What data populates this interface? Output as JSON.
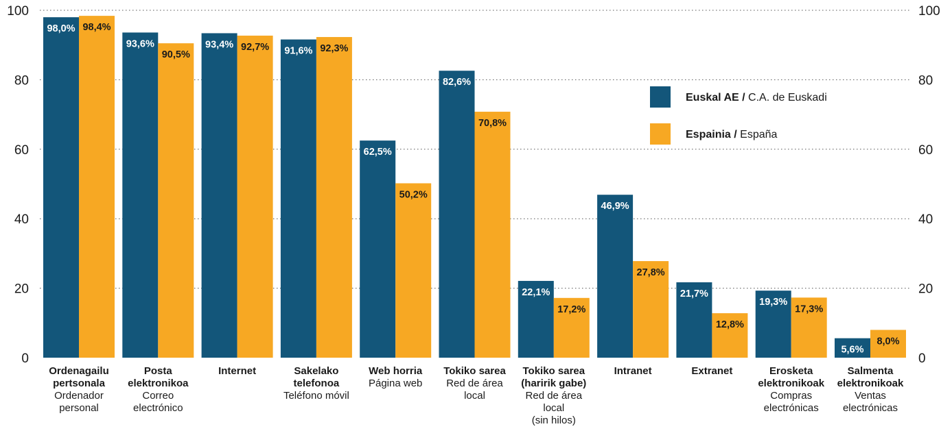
{
  "colors": {
    "series_0": "#13567a",
    "series_1": "#f7a823",
    "grid": "#555555",
    "value_label_dark": "#ffffff",
    "value_label_light": "#1a1a1a"
  },
  "chart_data": {
    "type": "bar",
    "ylim": [
      0,
      100
    ],
    "yticks": [
      0,
      20,
      40,
      60,
      80,
      100
    ],
    "grid": true,
    "grid_style": "dotted",
    "legend_position": "top-right",
    "categories": [
      {
        "bold": [
          "Ordenagailu",
          "pertsonala"
        ],
        "regular": [
          "Ordenador",
          "personal"
        ]
      },
      {
        "bold": [
          "Posta",
          "elektronikoa"
        ],
        "regular": [
          "Correo",
          "electrónico"
        ]
      },
      {
        "bold": [
          "Internet"
        ],
        "regular": []
      },
      {
        "bold": [
          "Sakelako",
          "telefonoa"
        ],
        "regular": [
          "Teléfono móvil"
        ]
      },
      {
        "bold": [
          "Web horria"
        ],
        "regular": [
          "Página web"
        ]
      },
      {
        "bold": [
          "Tokiko sarea"
        ],
        "regular": [
          "Red de área",
          "local"
        ]
      },
      {
        "bold": [
          "Tokiko sarea",
          "(haririk gabe)"
        ],
        "regular": [
          "Red de área",
          "local",
          "(sin hilos)"
        ]
      },
      {
        "bold": [
          "Intranet"
        ],
        "regular": []
      },
      {
        "bold": [
          "Extranet"
        ],
        "regular": []
      },
      {
        "bold": [
          "Erosketa",
          "elektronikoak"
        ],
        "regular": [
          "Compras",
          "electrónicas"
        ]
      },
      {
        "bold": [
          "Salmenta",
          "elektronikoak"
        ],
        "regular": [
          "Ventas",
          "electrónicas"
        ]
      }
    ],
    "series": [
      {
        "name_bold": "Euskal AE",
        "name_regular": "C.A. de Euskadi",
        "values": [
          98.0,
          93.6,
          93.4,
          91.6,
          62.5,
          82.6,
          22.1,
          46.9,
          21.7,
          19.3,
          5.6
        ],
        "labels": [
          "98,0%",
          "93,6%",
          "93,4%",
          "91,6%",
          "62,5%",
          "82,6%",
          "22,1%",
          "46,9%",
          "21,7%",
          "19,3%",
          "5,6%"
        ]
      },
      {
        "name_bold": "Espainia",
        "name_regular": "España",
        "values": [
          98.4,
          90.5,
          92.7,
          92.3,
          50.2,
          70.8,
          17.2,
          27.8,
          12.8,
          17.3,
          8.0
        ],
        "labels": [
          "98,4%",
          "90,5%",
          "92,7%",
          "92,3%",
          "50,2%",
          "70,8%",
          "17,2%",
          "27,8%",
          "12,8%",
          "17,3%",
          "8,0%"
        ]
      }
    ]
  }
}
